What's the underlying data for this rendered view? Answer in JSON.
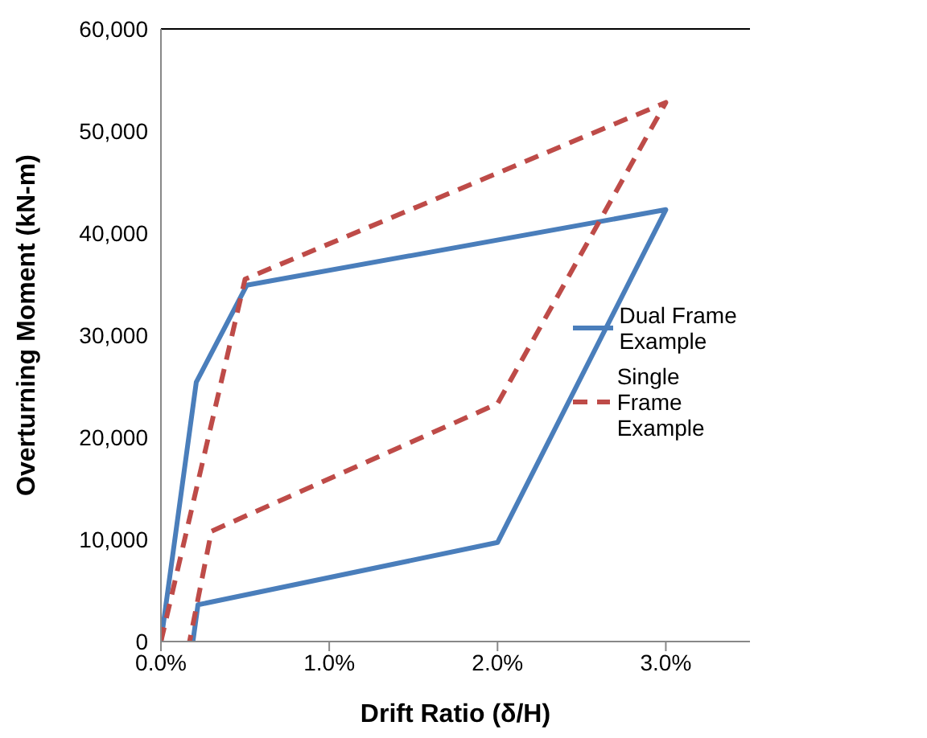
{
  "chart_data": {
    "type": "line",
    "xlabel": "Drift Ratio (δ/H)",
    "ylabel": "Overturning Moment (kN-m)",
    "xlim": [
      0,
      3.5
    ],
    "xticks": [
      {
        "value": 0,
        "label": "0.0%"
      },
      {
        "value": 1,
        "label": "1.0%"
      },
      {
        "value": 2,
        "label": "2.0%"
      },
      {
        "value": 3,
        "label": "3.0%"
      }
    ],
    "ylim": [
      0,
      60000
    ],
    "yticks": [
      {
        "value": 0,
        "label": "0"
      },
      {
        "value": 10000,
        "label": "10,000"
      },
      {
        "value": 20000,
        "label": "20,000"
      },
      {
        "value": 30000,
        "label": "30,000"
      },
      {
        "value": 40000,
        "label": "40,000"
      },
      {
        "value": 50000,
        "label": "50,000"
      },
      {
        "value": 60000,
        "label": "60,000"
      }
    ],
    "grid": false,
    "legend": "right",
    "marker": "none",
    "series": [
      {
        "name": "Dual Frame Example",
        "color": "#4a7ebb",
        "line_style": "solid",
        "x": [
          0,
          0.21,
          0.51,
          3.0,
          2.0,
          0.22,
          0.19
        ],
        "values": [
          0,
          25400,
          34900,
          42300,
          9700,
          3600,
          0
        ]
      },
      {
        "name": "Single Frame Example",
        "color": "#be4b48",
        "line_style": "dashed",
        "x": [
          0,
          0.5,
          3.0,
          2.0,
          0.3,
          0.17
        ],
        "values": [
          0,
          35500,
          52800,
          23300,
          10800,
          0
        ]
      }
    ]
  }
}
